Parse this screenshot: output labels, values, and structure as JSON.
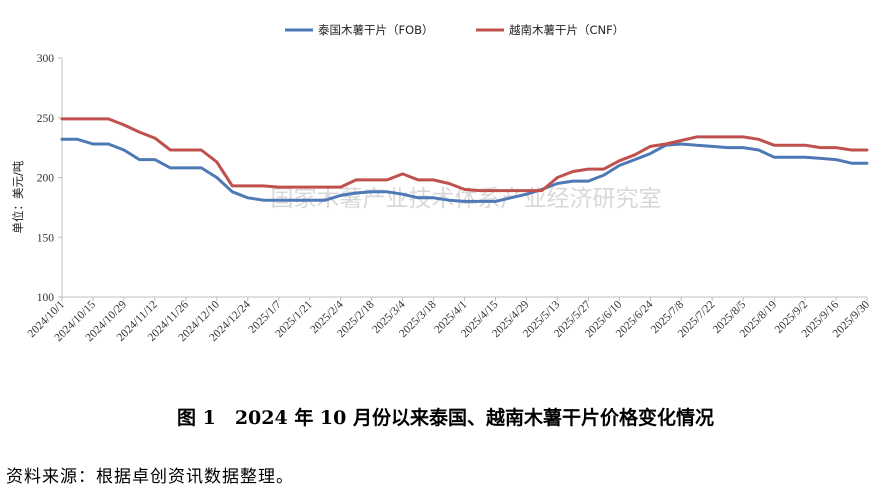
{
  "chart_data": {
    "type": "line",
    "title": "",
    "xlabel": "",
    "ylabel": "单位：美元/吨",
    "ylim": [
      100,
      300
    ],
    "yticks": [
      100,
      150,
      200,
      250,
      300
    ],
    "grid": false,
    "legend_position": "top-center",
    "watermark": "国家木薯产业技术体系产业经济研究室",
    "x": [
      "2024/10/1",
      "2024/10/8",
      "2024/10/15",
      "2024/10/22",
      "2024/10/29",
      "2024/11/5",
      "2024/11/12",
      "2024/11/19",
      "2024/11/26",
      "2024/12/3",
      "2024/12/10",
      "2024/12/17",
      "2024/12/24",
      "2024/12/31",
      "2025/1/7",
      "2025/1/14",
      "2025/1/21",
      "2025/1/28",
      "2025/2/4",
      "2025/2/11",
      "2025/2/18",
      "2025/2/25",
      "2025/3/4",
      "2025/3/11",
      "2025/3/18",
      "2025/3/25",
      "2025/4/1",
      "2025/4/8",
      "2025/4/15",
      "2025/4/22",
      "2025/4/29",
      "2025/5/6",
      "2025/5/13",
      "2025/5/20",
      "2025/5/27",
      "2025/6/3",
      "2025/6/10",
      "2025/6/17",
      "2025/6/24",
      "2025/7/1",
      "2025/7/8",
      "2025/7/15",
      "2025/7/22",
      "2025/7/29",
      "2025/8/5",
      "2025/8/12",
      "2025/8/19",
      "2025/8/26",
      "2025/9/2",
      "2025/9/9",
      "2025/9/16",
      "2025/9/23",
      "2025/9/30"
    ],
    "tick_labels": [
      "2024/10/1",
      "2024/10/15",
      "2024/10/29",
      "2024/11/12",
      "2024/11/26",
      "2024/12/10",
      "2024/12/24",
      "2025/1/7",
      "2025/1/21",
      "2025/2/4",
      "2025/2/18",
      "2025/3/4",
      "2025/3/18",
      "2025/4/1",
      "2025/4/15",
      "2025/4/29",
      "2025/5/13",
      "2025/5/27",
      "2025/6/10",
      "2025/6/24",
      "2025/7/8",
      "2025/7/22",
      "2025/8/5",
      "2025/8/19",
      "2025/9/2",
      "2025/9/16",
      "2025/9/30"
    ],
    "series": [
      {
        "name": "泰国木薯干片（FOB）",
        "color": "#4e79b5",
        "values": [
          232,
          232,
          228,
          228,
          223,
          215,
          215,
          208,
          208,
          208,
          200,
          188,
          183,
          181,
          181,
          181,
          181,
          181,
          185,
          187,
          188,
          188,
          186,
          183,
          183,
          181,
          180,
          180,
          180,
          183,
          186,
          190,
          195,
          197,
          197,
          202,
          210,
          215,
          220,
          227,
          228,
          227,
          226,
          225,
          225,
          223,
          217,
          217,
          217,
          216,
          215,
          212,
          212
        ]
      },
      {
        "name": "越南木薯干片（CNF）",
        "color": "#c0504d",
        "values": [
          249,
          249,
          249,
          249,
          244,
          238,
          233,
          223,
          223,
          223,
          213,
          193,
          193,
          193,
          192,
          192,
          192,
          192,
          192,
          198,
          198,
          198,
          203,
          198,
          198,
          195,
          190,
          189,
          189,
          189,
          189,
          189,
          200,
          205,
          207,
          207,
          214,
          219,
          226,
          228,
          231,
          234,
          234,
          234,
          234,
          232,
          227,
          227,
          227,
          225,
          225,
          223,
          223
        ]
      }
    ]
  },
  "caption": "图 1　2024 年 10 月份以来泰国、越南木薯干片价格变化情况",
  "source": "资料来源：根据卓创资讯数据整理。"
}
